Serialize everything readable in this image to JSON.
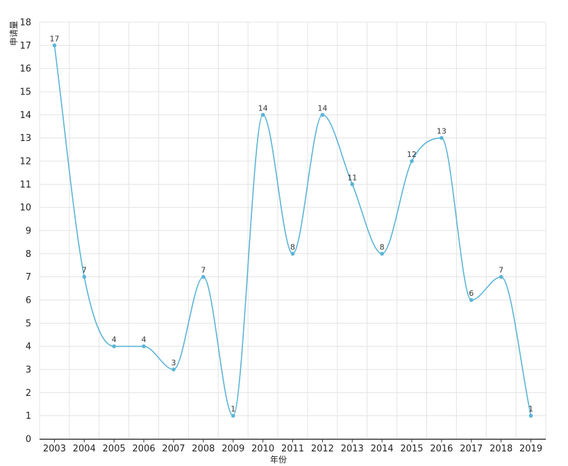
{
  "chart_data": {
    "type": "line",
    "smooth": true,
    "categories": [
      "2003",
      "2004",
      "2005",
      "2006",
      "2007",
      "2008",
      "2009",
      "2010",
      "2011",
      "2012",
      "2013",
      "2014",
      "2015",
      "2016",
      "2017",
      "2018",
      "2019"
    ],
    "series": [
      {
        "values": [
          17,
          7,
          4,
          4,
          3,
          7,
          1,
          14,
          8,
          14,
          11,
          8,
          12,
          13,
          6,
          7,
          1
        ]
      }
    ],
    "xlabel": "年份",
    "ylabel": "申请量",
    "ylim": [
      0,
      18
    ],
    "yticks": [
      0,
      1,
      2,
      3,
      4,
      5,
      6,
      7,
      8,
      9,
      10,
      11,
      12,
      13,
      14,
      15,
      16,
      17,
      18
    ],
    "grid": true,
    "data_labels": true,
    "colors": {
      "line": "#5ab4d6",
      "grid": "#e3e3e3",
      "axis": "#333333"
    }
  }
}
